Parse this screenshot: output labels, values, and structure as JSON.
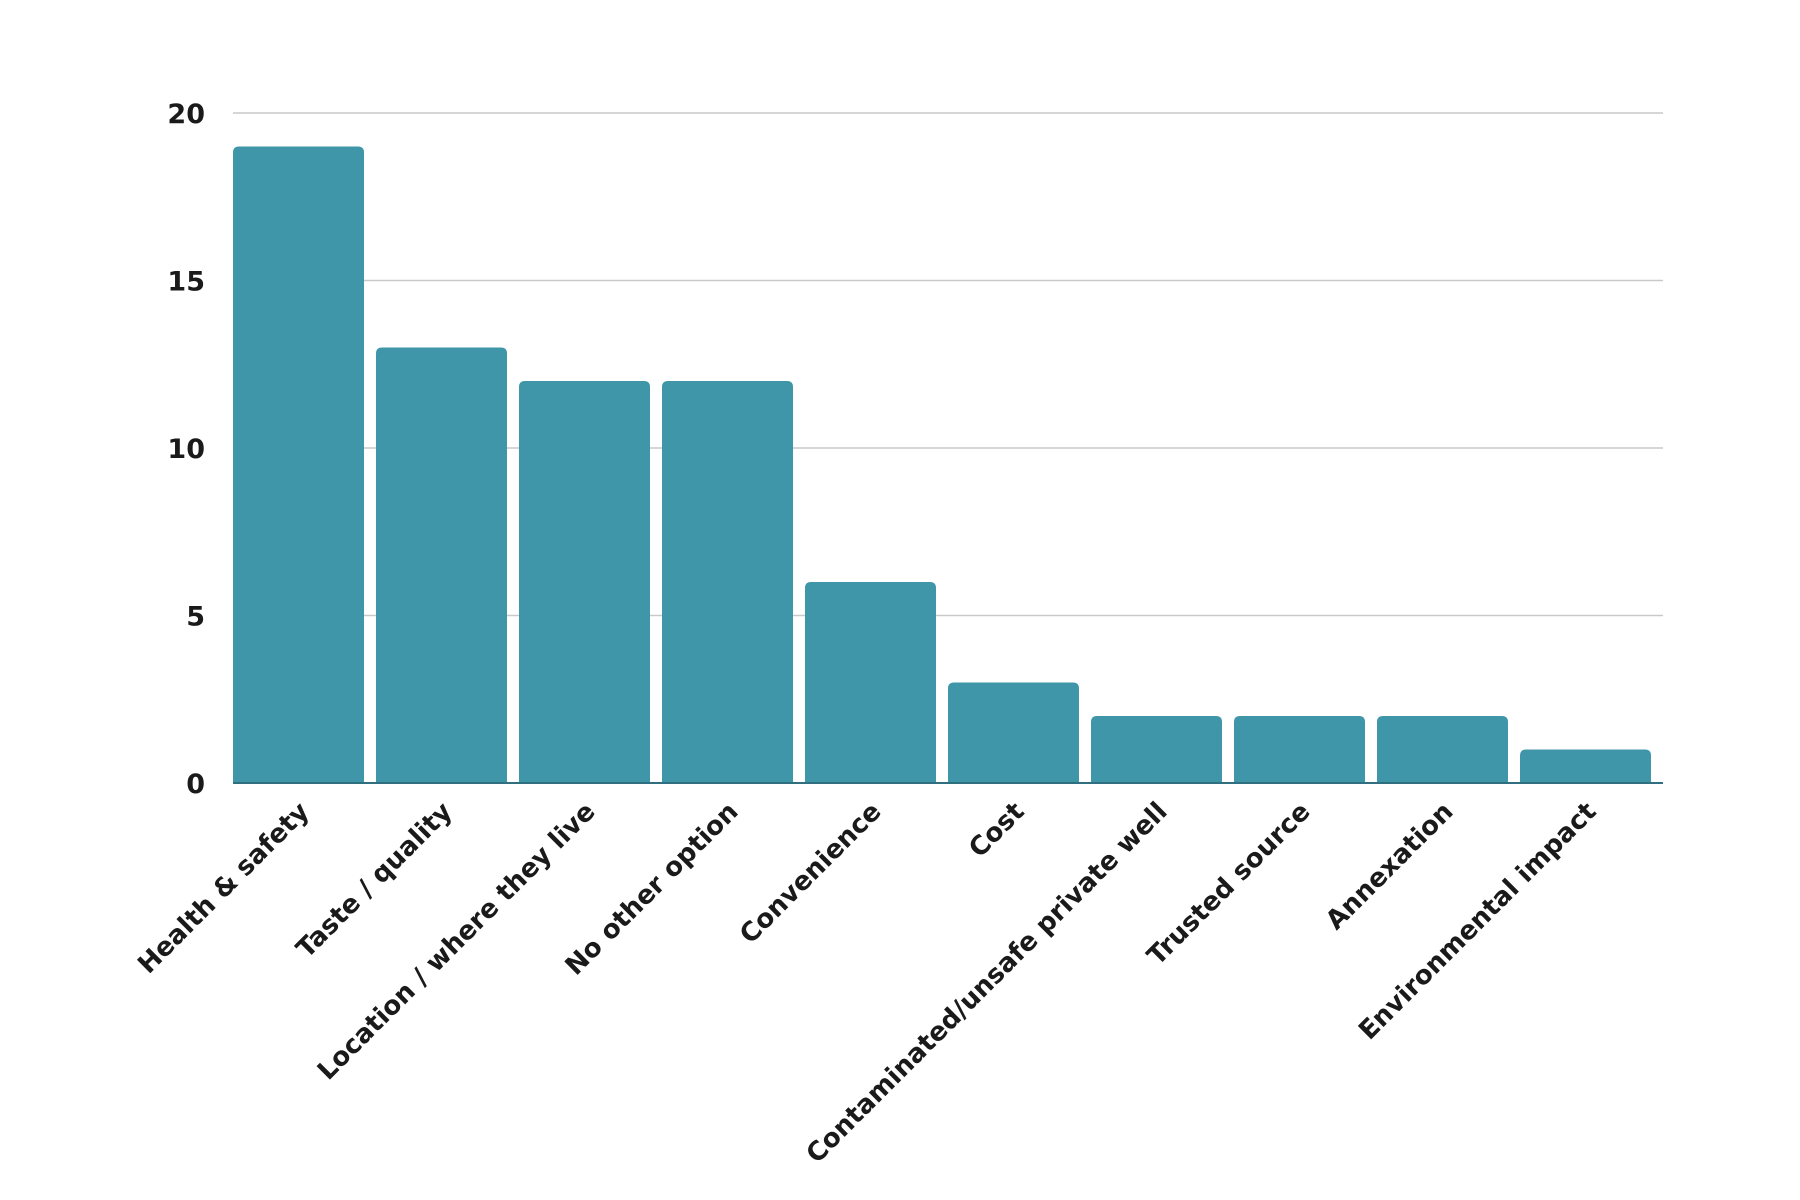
{
  "chart_data": {
    "type": "bar",
    "title": "",
    "xlabel": "",
    "ylabel": "",
    "categories": [
      "Health & safety",
      "Taste / quality",
      "Location / where they live",
      "No other option",
      "Convenience",
      "Cost",
      "Contaminated/unsafe private well",
      "Trusted source",
      "Annexation",
      "Environmental impact"
    ],
    "values": [
      19,
      13,
      12,
      12,
      6,
      3,
      2,
      2,
      2,
      1
    ],
    "ylim": [
      0,
      20
    ],
    "yticks": [
      "0",
      "5",
      "10",
      "15",
      "20"
    ],
    "grid": true,
    "legend": "none",
    "bar_color": "#3f96a9"
  }
}
